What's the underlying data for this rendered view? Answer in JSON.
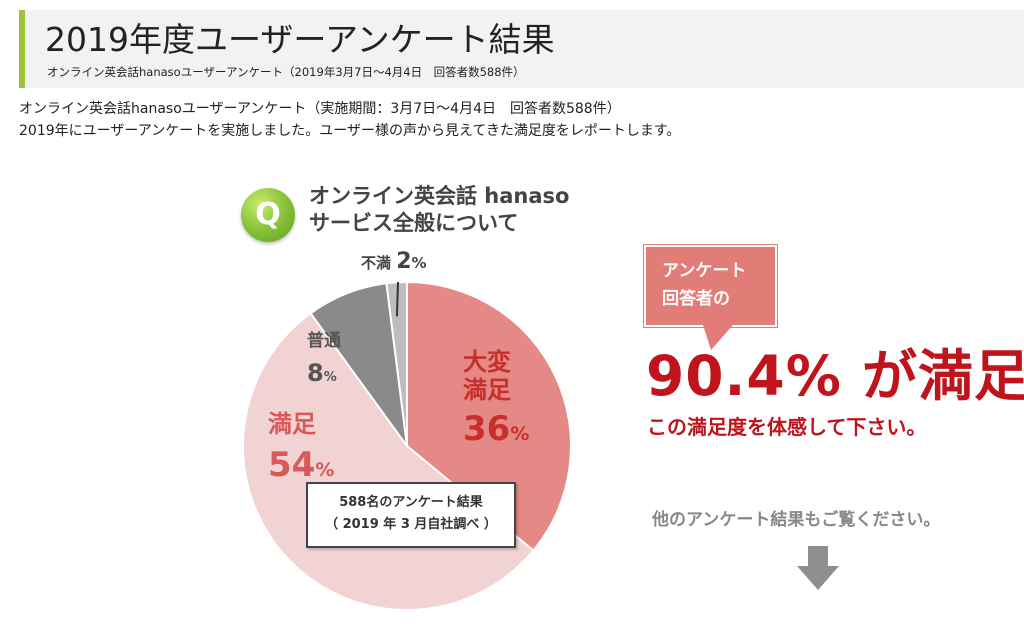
{
  "header": {
    "title": "2019年度ユーザーアンケート結果",
    "subtitle": "オンライン英会話hanasoユーザーアンケート（2019年3月7日〜4月4日　回答者数588件）"
  },
  "intro": {
    "line1": "オンライン英会話hanasoユーザーアンケート（実施期間：3月7日〜4月4日　回答者数588件）",
    "line2": "2019年にユーザーアンケートを実施しました。ユーザー様の声から見えてきた満足度をレポートします。"
  },
  "question": {
    "badge": "Q",
    "line1": "オンライン英会話 hanaso",
    "line2": "サービス全般について"
  },
  "chart_data": {
    "type": "pie",
    "slices": [
      {
        "label_lines": [
          "大変",
          "満足"
        ],
        "value": 36,
        "value_text": "36",
        "unit": "%",
        "color": "#e58987"
      },
      {
        "label_lines": [
          "満足"
        ],
        "value": 54,
        "value_text": "54",
        "unit": "%",
        "color": "#f1d3d3"
      },
      {
        "label_lines": [
          "普通"
        ],
        "value": 8,
        "value_text": "8",
        "unit": "%",
        "color": "#8a8a8a"
      },
      {
        "label_lines": [
          "不満"
        ],
        "value": 2,
        "value_text": "2",
        "unit": "%",
        "color": "#bdbdbd"
      }
    ],
    "note_line1": "588名のアンケート結果",
    "note_line2": "（ 2019 年 3 月自社調べ ）"
  },
  "highlight": {
    "bubble_line1": "アンケート",
    "bubble_line2": "回答者の",
    "big_stat": "90.4% が満足",
    "caption": "この満足度を体感して下さい。",
    "other_results": "他のアンケート結果もご覧ください。",
    "arrow_icon": "down-arrow-icon"
  }
}
